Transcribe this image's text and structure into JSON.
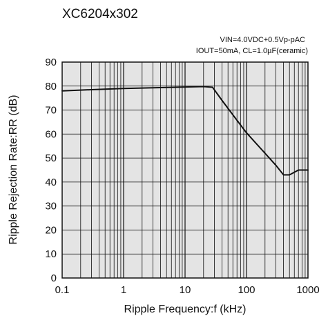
{
  "chart_data": {
    "type": "line",
    "title": "XC6204x302",
    "conditions": [
      "VIN=4.0VDC+0.5Vp-pAC",
      "IOUT=50mA, CL=1.0µF(ceramic)"
    ],
    "xlabel": "Ripple Frequency:f (kHz)",
    "ylabel": "Ripple Rejection Rate:RR (dB)",
    "x_scale": "log",
    "xlim": [
      0.1,
      1000
    ],
    "ylim": [
      0,
      90
    ],
    "x_ticks": [
      "0.1",
      "1",
      "10",
      "100",
      "1000"
    ],
    "y_ticks": [
      "0",
      "10",
      "20",
      "30",
      "40",
      "50",
      "60",
      "70",
      "80",
      "90"
    ],
    "grid": true,
    "series": [
      {
        "x": [
          0.1,
          0.3,
          1,
          3,
          10,
          20,
          28,
          40,
          60,
          100,
          200,
          300,
          400,
          500,
          700,
          1000
        ],
        "y": [
          78,
          78.5,
          79,
          79.3,
          79.6,
          79.8,
          79.5,
          74,
          68,
          60.5,
          52,
          47,
          43,
          43,
          45,
          45
        ]
      }
    ]
  }
}
